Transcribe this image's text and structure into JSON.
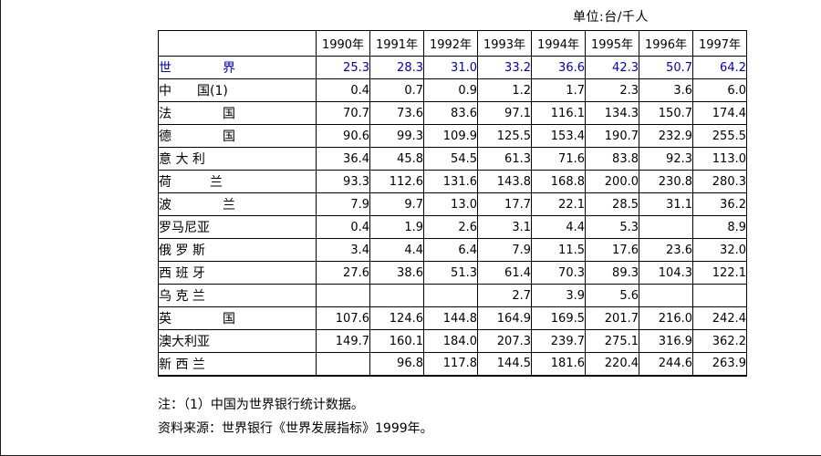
{
  "page": {
    "unit_label": "单位:台/千人",
    "note": "注：（1）中国为世界银行统计数据。",
    "source": "资料来源：世界银行《世界发展指标》1999年。"
  },
  "colors": {
    "highlight_row": "#0000cc",
    "text": "#000000",
    "border": "#000000"
  },
  "table": {
    "columns": [
      "1990年",
      "1991年",
      "1992年",
      "1993年",
      "1994年",
      "1995年",
      "1996年",
      "1997年"
    ],
    "rows": [
      {
        "label": "世　　　　界",
        "name": "世界",
        "highlight": true,
        "values": [
          "25.3",
          "28.3",
          "31.0",
          "33.2",
          "36.6",
          "42.3",
          "50.7",
          "64.2"
        ]
      },
      {
        "label": "中　　国(1)",
        "name": "中国(1)",
        "highlight": false,
        "values": [
          "0.4",
          "0.7",
          "0.9",
          "1.2",
          "1.7",
          "2.3",
          "3.6",
          "6.0"
        ]
      },
      {
        "label": "法　　　　国",
        "name": "法国",
        "highlight": false,
        "values": [
          "70.7",
          "73.6",
          "83.6",
          "97.1",
          "116.1",
          "134.3",
          "150.7",
          "174.4"
        ]
      },
      {
        "label": "德　　　　国",
        "name": "德国",
        "highlight": false,
        "values": [
          "90.6",
          "99.3",
          "109.9",
          "125.5",
          "153.4",
          "190.7",
          "232.9",
          "255.5"
        ]
      },
      {
        "label": "意 大 利",
        "name": "意大利",
        "highlight": false,
        "values": [
          "36.4",
          "45.8",
          "54.5",
          "61.3",
          "71.6",
          "83.8",
          "92.3",
          "113.0"
        ]
      },
      {
        "label": "荷　　　兰",
        "name": "荷兰",
        "highlight": false,
        "values": [
          "93.3",
          "112.6",
          "131.6",
          "143.8",
          "168.8",
          "200.0",
          "230.8",
          "280.3"
        ]
      },
      {
        "label": "波　　　　兰",
        "name": "波兰",
        "highlight": false,
        "values": [
          "7.9",
          "9.7",
          "13.0",
          "17.7",
          "22.1",
          "28.5",
          "31.1",
          "36.2"
        ]
      },
      {
        "label": "罗马尼亚",
        "name": "罗马尼亚",
        "highlight": false,
        "values": [
          "0.4",
          "1.9",
          "2.6",
          "3.1",
          "4.4",
          "5.3",
          "",
          "8.9"
        ]
      },
      {
        "label": "俄 罗 斯",
        "name": "俄罗斯",
        "highlight": false,
        "values": [
          "3.4",
          "4.4",
          "6.4",
          "7.9",
          "11.5",
          "17.6",
          "23.6",
          "32.0"
        ]
      },
      {
        "label": "西 班 牙",
        "name": "西班牙",
        "highlight": false,
        "values": [
          "27.6",
          "38.6",
          "51.3",
          "61.4",
          "70.3",
          "89.3",
          "104.3",
          "122.1"
        ]
      },
      {
        "label": "乌 克 兰",
        "name": "乌克兰",
        "highlight": false,
        "values": [
          "",
          "",
          "",
          "2.7",
          "3.9",
          "5.6",
          "",
          ""
        ]
      },
      {
        "label": "英　　　　国",
        "name": "英国",
        "highlight": false,
        "values": [
          "107.6",
          "124.6",
          "144.8",
          "164.9",
          "169.5",
          "201.7",
          "216.0",
          "242.4"
        ]
      },
      {
        "label": "澳大利亚",
        "name": "澳大利亚",
        "highlight": false,
        "values": [
          "149.7",
          "160.1",
          "184.0",
          "207.3",
          "239.7",
          "275.1",
          "316.9",
          "362.2"
        ]
      },
      {
        "label": "新 西 兰",
        "name": "新西兰",
        "highlight": false,
        "values": [
          "",
          "96.8",
          "117.8",
          "144.5",
          "181.6",
          "220.4",
          "244.6",
          "263.9"
        ]
      }
    ]
  }
}
